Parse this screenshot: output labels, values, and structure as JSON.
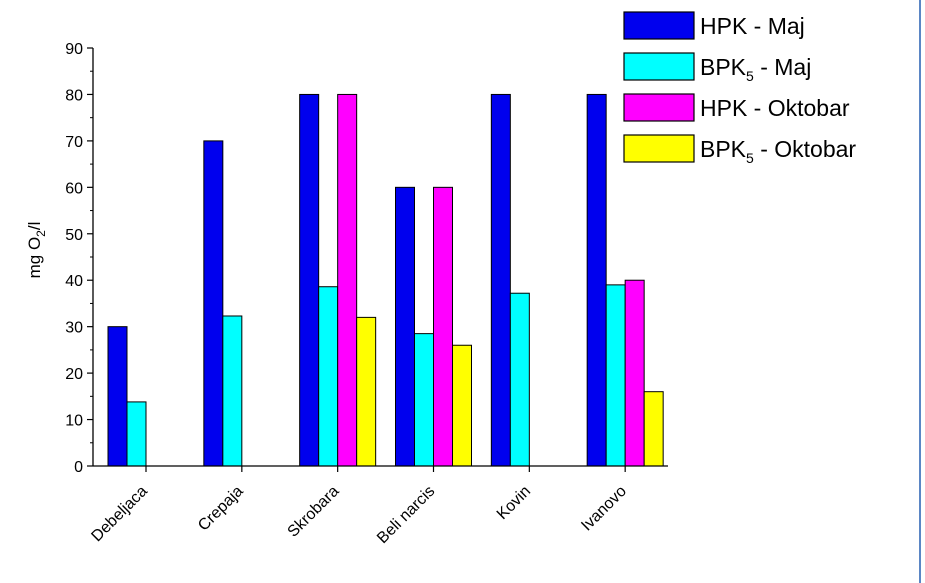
{
  "chart_data": {
    "type": "bar",
    "ylabel_main": "mg O",
    "ylabel_sub": "2",
    "ylabel_suffix": "/l",
    "ylim": [
      0,
      90
    ],
    "yticks": [
      "0",
      "10",
      "20",
      "30",
      "40",
      "50",
      "60",
      "70",
      "80",
      "90"
    ],
    "categories": [
      "Debeljaca",
      "Crepaja",
      "Skrobara",
      "Beli narcis",
      "Kovin",
      "Ivanovo"
    ],
    "series": [
      {
        "name": "HPK - Maj",
        "name_main": "HPK - Maj",
        "name_sub": "",
        "name_suffix": "",
        "color": "#0000ee",
        "values": [
          30,
          70,
          80,
          60,
          80,
          80
        ]
      },
      {
        "name": "BPK5 - Maj",
        "name_main": "BPK",
        "name_sub": "5",
        "name_suffix": " - Maj",
        "color": "#00ffff",
        "values": [
          13.8,
          32.3,
          38.6,
          28.5,
          37.2,
          39
        ]
      },
      {
        "name": "HPK - Oktobar",
        "name_main": "HPK - Oktobar",
        "name_sub": "",
        "name_suffix": "",
        "color": "#ff00ff",
        "values": [
          null,
          null,
          80,
          60,
          null,
          40
        ]
      },
      {
        "name": "BPK5 - Oktobar",
        "name_main": "BPK",
        "name_sub": "5",
        "name_suffix": " - Oktobar",
        "color": "#ffff00",
        "values": [
          null,
          null,
          32,
          26,
          null,
          16
        ]
      }
    ]
  }
}
